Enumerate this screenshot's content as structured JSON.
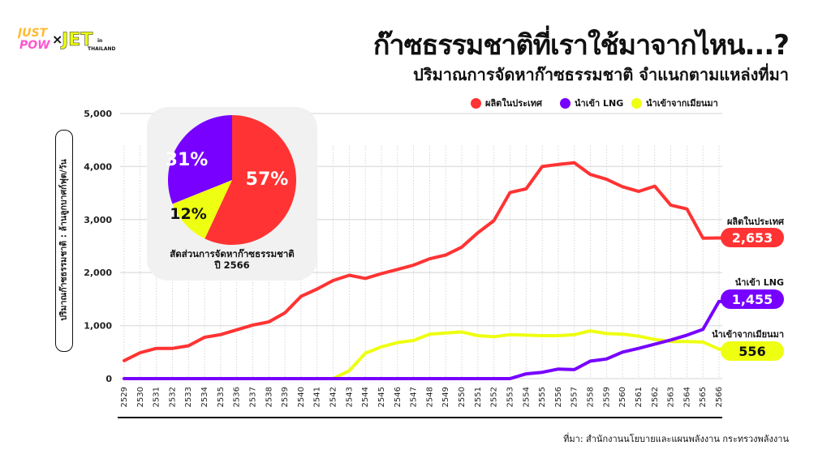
{
  "logo": {
    "text_left": "JUST POW",
    "times": "×",
    "text_right": "JET",
    "suffix": "in THAILAND"
  },
  "header": {
    "title": "ก๊าซธรรมชาติที่เราใช้มาจากไหน...?",
    "subtitle": "ปริมาณการจัดหาก๊าซธรรมชาติ จำแนกตามแหล่งที่มา"
  },
  "source": "ที่มา: สำนักงานนโยบายและแผนพลังงาน กระทรวงพลังงาน",
  "pie": {
    "caption_line1": "สัดส่วนการจัดหาก๊าซธรรมชาติ",
    "caption_line2": "ปี 2566",
    "slices": [
      {
        "name": "ผลิตในประเทศ",
        "value": 57,
        "label": "57%",
        "color": "#ff3333"
      },
      {
        "name": "นำเข้าจากเมียนมา",
        "value": 12,
        "label": "12%",
        "color": "#eeff11"
      },
      {
        "name": "นำเข้า LNG",
        "value": 31,
        "label": "31%",
        "color": "#7700ff"
      }
    ]
  },
  "end_labels": [
    {
      "name": "ผลิตในประเทศ",
      "value": "2,653"
    },
    {
      "name": "นำเข้า LNG",
      "value": "1,455"
    },
    {
      "name": "นำเข้าจากเมียนมา",
      "value": "556"
    }
  ],
  "chart_data": {
    "type": "line",
    "title": "ปริมาณการจัดหาก๊าซธรรมชาติ จำแนกตามแหล่งที่มา",
    "xlabel": "",
    "ylabel": "ปริมาณก๊าซธรรมชาติ : ล้านลูกบาศก์ฟุต/วัน",
    "ylim": [
      0,
      5000
    ],
    "yticks": [
      0,
      1000,
      2000,
      3000,
      4000,
      5000
    ],
    "ytick_labels": [
      "0",
      "1,000",
      "2,000",
      "3,000",
      "4,000",
      "5,000"
    ],
    "grid": true,
    "legend_position": "top-right",
    "x": [
      "2529",
      "2530",
      "2531",
      "2532",
      "2533",
      "2534",
      "2535",
      "2536",
      "2537",
      "2538",
      "2539",
      "2540",
      "2541",
      "2542",
      "2543",
      "2544",
      "2545",
      "2546",
      "2547",
      "2548",
      "2549",
      "2550",
      "2551",
      "2552",
      "2553",
      "2554",
      "2555",
      "2556",
      "2557",
      "2558",
      "2559",
      "2560",
      "2561",
      "2562",
      "2563",
      "2564",
      "2565",
      "2566"
    ],
    "series": [
      {
        "name": "ผลิตในประเทศ",
        "color": "#ff3333",
        "values": [
          340,
          490,
          570,
          570,
          620,
          780,
          830,
          920,
          1010,
          1070,
          1240,
          1550,
          1690,
          1850,
          1950,
          1890,
          1980,
          2060,
          2140,
          2260,
          2330,
          2480,
          2750,
          2980,
          3510,
          3580,
          4000,
          4040,
          4070,
          3850,
          3760,
          3620,
          3530,
          3630,
          3270,
          3200,
          2650,
          2653
        ]
      },
      {
        "name": "นำเข้า LNG",
        "color": "#7700ff",
        "values": [
          0,
          0,
          0,
          0,
          0,
          0,
          0,
          0,
          0,
          0,
          0,
          0,
          0,
          0,
          0,
          0,
          0,
          0,
          0,
          0,
          0,
          0,
          0,
          0,
          0,
          90,
          120,
          180,
          170,
          330,
          370,
          500,
          570,
          650,
          730,
          820,
          930,
          1455
        ]
      },
      {
        "name": "นำเข้าจากเมียนมา",
        "color": "#eeff11",
        "values": [
          null,
          null,
          null,
          null,
          null,
          null,
          null,
          null,
          null,
          null,
          null,
          null,
          null,
          0,
          150,
          480,
          600,
          680,
          720,
          840,
          860,
          880,
          810,
          790,
          830,
          820,
          810,
          810,
          830,
          900,
          850,
          840,
          800,
          740,
          700,
          700,
          690,
          556
        ]
      }
    ]
  }
}
